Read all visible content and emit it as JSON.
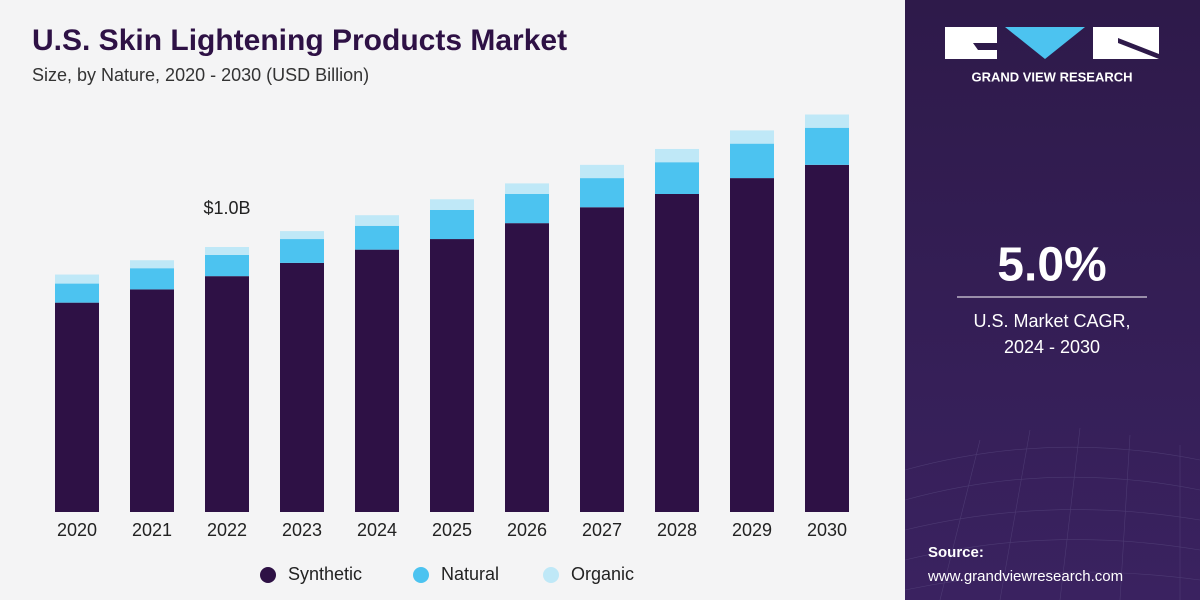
{
  "chart_data": {
    "type": "stacked-bar",
    "title": "U.S. Skin Lightening Products Market",
    "subtitle": "Size, by Nature, 2020 - 2030 (USD Billion)",
    "categories": [
      "2020",
      "2021",
      "2022",
      "2023",
      "2024",
      "2025",
      "2026",
      "2027",
      "2028",
      "2029",
      "2030"
    ],
    "series": [
      {
        "name": "Synthetic",
        "color": "#2e1145",
        "values": [
          0.79,
          0.84,
          0.89,
          0.94,
          0.99,
          1.03,
          1.09,
          1.15,
          1.2,
          1.26,
          1.31
        ]
      },
      {
        "name": "Natural",
        "color": "#4cc3f0",
        "values": [
          0.072,
          0.08,
          0.08,
          0.09,
          0.09,
          0.11,
          0.11,
          0.11,
          0.12,
          0.13,
          0.14
        ]
      },
      {
        "name": "Organic",
        "color": "#bfe8f7",
        "values": [
          0.034,
          0.03,
          0.03,
          0.03,
          0.04,
          0.04,
          0.04,
          0.05,
          0.05,
          0.05,
          0.05
        ]
      }
    ],
    "annotation": {
      "label": "$1.0B",
      "value": 1.0,
      "category": "2022"
    },
    "legend": "bottom"
  },
  "sidebar": {
    "brand": "GRAND VIEW RESEARCH",
    "cagr": "5.0%",
    "cagr_label": "U.S. Market CAGR,",
    "cagr_period": "2024 - 2030",
    "source_label": "Source:",
    "source_url": "www.grandviewresearch.com"
  }
}
